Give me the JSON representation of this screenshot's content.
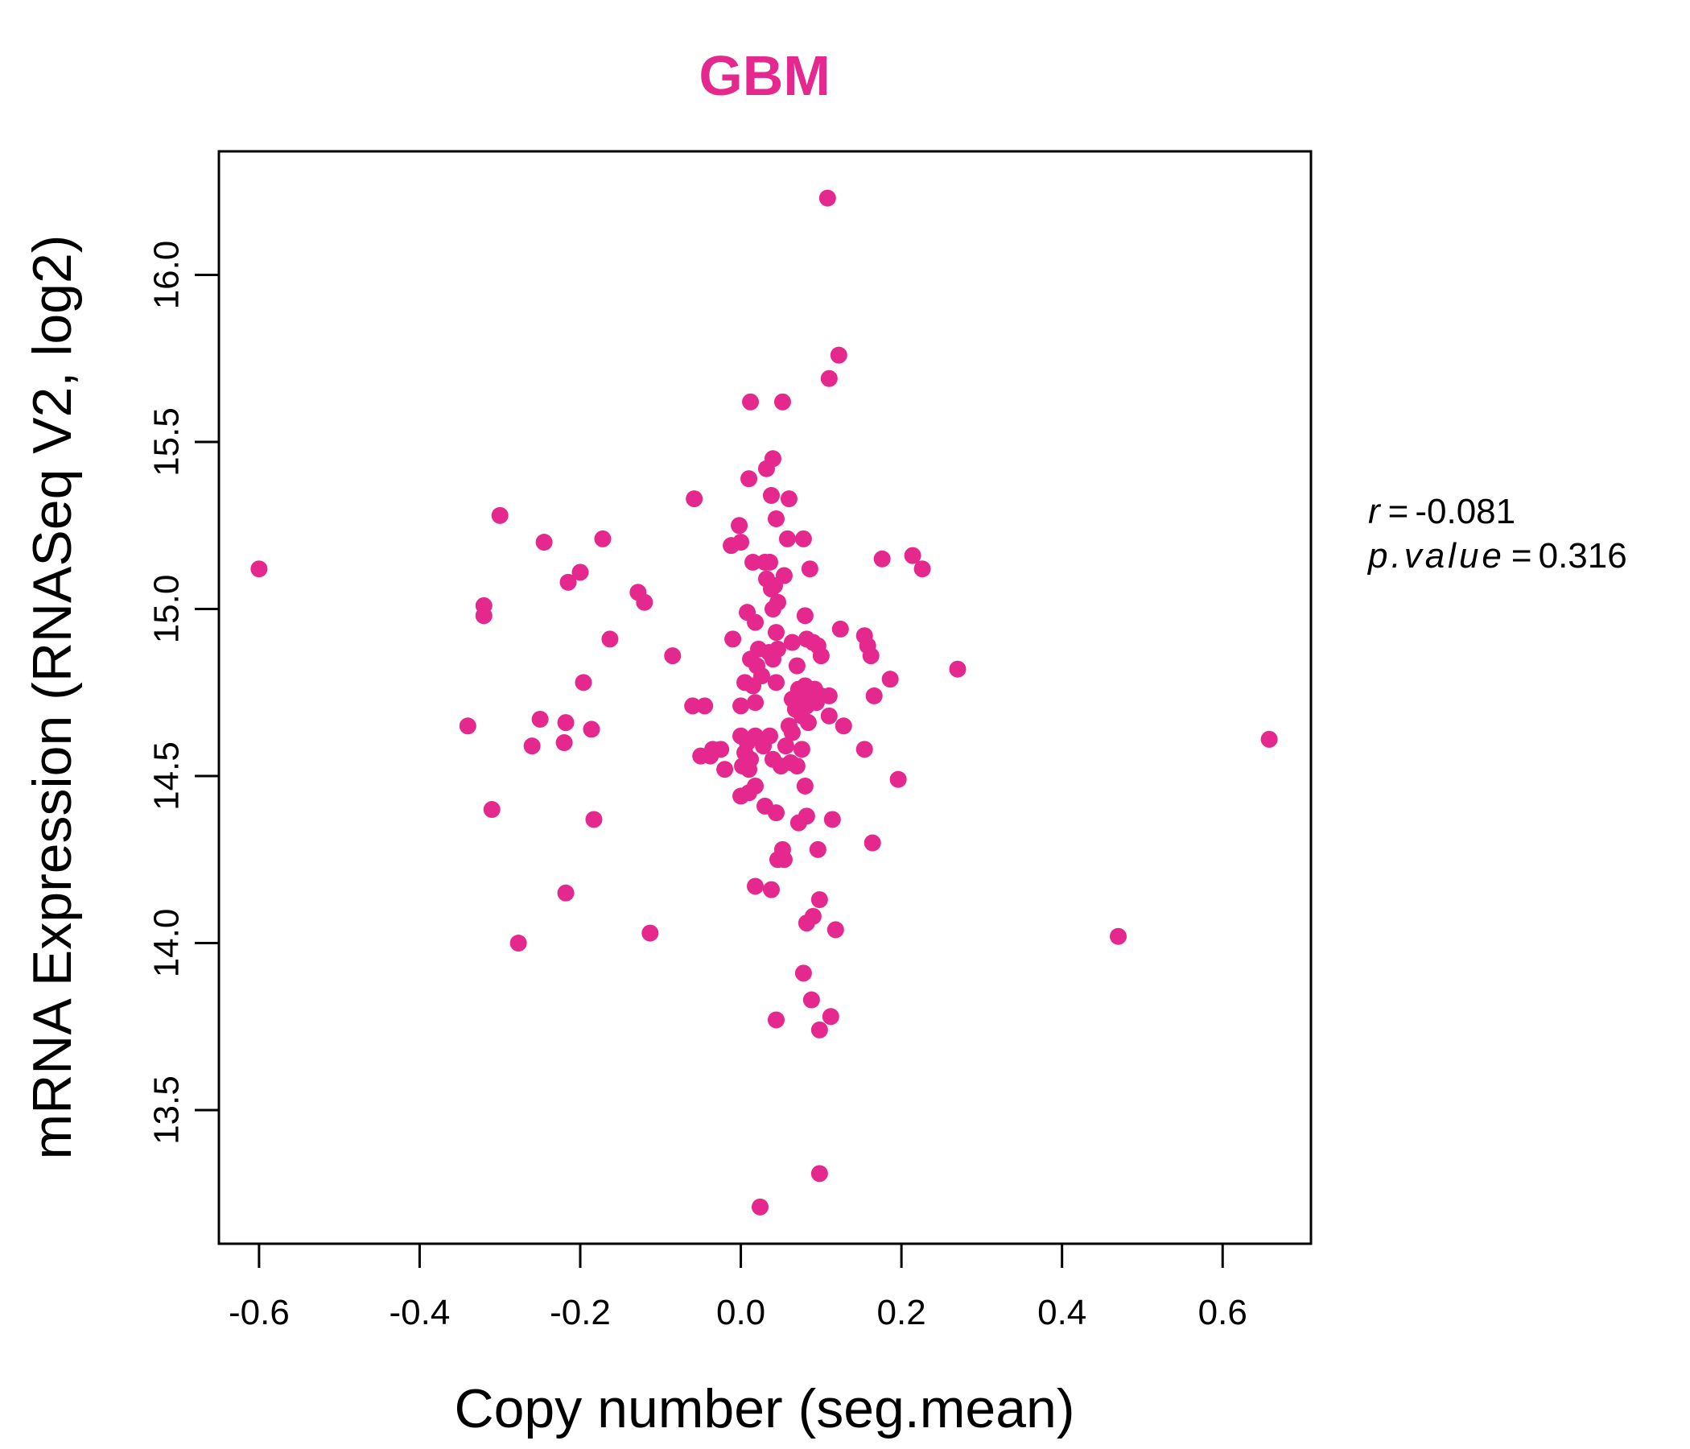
{
  "colors": {
    "point": "#e5288d",
    "title": "#e5288d",
    "axis": "#000000"
  },
  "stats": {
    "r_label": "r",
    "r_value": "-0.081",
    "p_label": "p.value",
    "p_value": "0.316"
  },
  "chart_data": {
    "type": "scatter",
    "title": "GBM",
    "xlabel": "Copy number (seg.mean)",
    "ylabel": "mRNA Expression (RNASeq V2, log2)",
    "xlim": [
      -0.65,
      0.71
    ],
    "ylim": [
      13.1,
      16.37
    ],
    "xticks": [
      -0.6,
      -0.4,
      -0.2,
      0.0,
      0.2,
      0.4,
      0.6
    ],
    "xtick_labels": [
      "-0.6",
      "-0.4",
      "-0.2",
      "0.0",
      "0.2",
      "0.4",
      "0.6"
    ],
    "yticks": [
      13.5,
      14.0,
      14.5,
      15.0,
      15.5,
      16.0
    ],
    "ytick_labels": [
      "13.5",
      "14.0",
      "14.5",
      "15.0",
      "15.5",
      "16.0"
    ],
    "grid": false,
    "points": [
      [
        -0.6,
        15.12
      ],
      [
        -0.3,
        15.28
      ],
      [
        -0.245,
        15.2
      ],
      [
        -0.2,
        15.11
      ],
      [
        -0.215,
        15.08
      ],
      [
        -0.172,
        15.21
      ],
      [
        -0.32,
        15.01
      ],
      [
        -0.32,
        14.98
      ],
      [
        -0.128,
        15.05
      ],
      [
        -0.12,
        15.02
      ],
      [
        -0.163,
        14.91
      ],
      [
        -0.085,
        14.86
      ],
      [
        -0.196,
        14.78
      ],
      [
        -0.34,
        14.65
      ],
      [
        -0.25,
        14.67
      ],
      [
        -0.218,
        14.66
      ],
      [
        -0.186,
        14.64
      ],
      [
        -0.26,
        14.59
      ],
      [
        -0.22,
        14.6
      ],
      [
        -0.31,
        14.4
      ],
      [
        -0.183,
        14.37
      ],
      [
        -0.218,
        14.15
      ],
      [
        -0.277,
        14.0
      ],
      [
        -0.113,
        14.03
      ],
      [
        -0.058,
        15.33
      ],
      [
        -0.002,
        15.25
      ],
      [
        -0.012,
        15.19
      ],
      [
        0.0,
        15.2
      ],
      [
        0.008,
        14.99
      ],
      [
        0.018,
        14.96
      ],
      [
        -0.01,
        14.91
      ],
      [
        0.022,
        14.88
      ],
      [
        0.012,
        14.85
      ],
      [
        0.02,
        14.83
      ],
      [
        0.005,
        14.78
      ],
      [
        0.015,
        14.77
      ],
      [
        0.0,
        14.71
      ],
      [
        0.018,
        14.72
      ],
      [
        -0.06,
        14.71
      ],
      [
        -0.045,
        14.71
      ],
      [
        0.0,
        14.62
      ],
      [
        0.008,
        14.6
      ],
      [
        0.018,
        14.62
      ],
      [
        -0.025,
        14.58
      ],
      [
        -0.035,
        14.58
      ],
      [
        0.005,
        14.57
      ],
      [
        0.012,
        14.55
      ],
      [
        -0.05,
        14.56
      ],
      [
        -0.038,
        14.56
      ],
      [
        -0.02,
        14.52
      ],
      [
        0.002,
        14.53
      ],
      [
        0.01,
        14.52
      ],
      [
        0.0,
        14.44
      ],
      [
        0.01,
        14.45
      ],
      [
        0.018,
        14.47
      ],
      [
        0.018,
        14.17
      ],
      [
        0.012,
        15.62
      ],
      [
        0.01,
        15.39
      ],
      [
        0.015,
        15.14
      ],
      [
        0.026,
        14.8
      ],
      [
        0.052,
        15.62
      ],
      [
        0.04,
        15.45
      ],
      [
        0.032,
        15.42
      ],
      [
        0.038,
        15.34
      ],
      [
        0.06,
        15.33
      ],
      [
        0.044,
        15.27
      ],
      [
        0.058,
        15.21
      ],
      [
        0.078,
        15.21
      ],
      [
        0.03,
        15.14
      ],
      [
        0.036,
        15.14
      ],
      [
        0.054,
        15.1
      ],
      [
        0.086,
        15.12
      ],
      [
        0.032,
        15.09
      ],
      [
        0.042,
        15.07
      ],
      [
        0.038,
        15.06
      ],
      [
        0.046,
        15.02
      ],
      [
        0.04,
        15.0
      ],
      [
        0.08,
        14.98
      ],
      [
        0.044,
        14.93
      ],
      [
        0.064,
        14.9
      ],
      [
        0.082,
        14.91
      ],
      [
        0.09,
        14.9
      ],
      [
        0.096,
        14.89
      ],
      [
        0.035,
        14.87
      ],
      [
        0.046,
        14.88
      ],
      [
        0.1,
        14.86
      ],
      [
        0.04,
        14.85
      ],
      [
        0.07,
        14.83
      ],
      [
        0.044,
        14.78
      ],
      [
        0.072,
        14.76
      ],
      [
        0.08,
        14.77
      ],
      [
        0.092,
        14.76
      ],
      [
        0.064,
        14.73
      ],
      [
        0.074,
        14.74
      ],
      [
        0.086,
        14.73
      ],
      [
        0.1,
        14.74
      ],
      [
        0.11,
        14.74
      ],
      [
        0.068,
        14.7
      ],
      [
        0.082,
        14.71
      ],
      [
        0.094,
        14.72
      ],
      [
        0.076,
        14.68
      ],
      [
        0.06,
        14.65
      ],
      [
        0.084,
        14.66
      ],
      [
        0.11,
        14.68
      ],
      [
        0.036,
        14.62
      ],
      [
        0.064,
        14.63
      ],
      [
        0.028,
        14.59
      ],
      [
        0.056,
        14.59
      ],
      [
        0.076,
        14.58
      ],
      [
        0.04,
        14.55
      ],
      [
        0.05,
        14.53
      ],
      [
        0.062,
        14.54
      ],
      [
        0.07,
        14.53
      ],
      [
        0.08,
        14.47
      ],
      [
        0.03,
        14.41
      ],
      [
        0.044,
        14.39
      ],
      [
        0.072,
        14.36
      ],
      [
        0.082,
        14.38
      ],
      [
        0.114,
        14.37
      ],
      [
        0.052,
        14.28
      ],
      [
        0.046,
        14.25
      ],
      [
        0.054,
        14.25
      ],
      [
        0.096,
        14.28
      ],
      [
        0.038,
        14.16
      ],
      [
        0.098,
        14.13
      ],
      [
        0.09,
        14.08
      ],
      [
        0.082,
        14.06
      ],
      [
        0.118,
        14.04
      ],
      [
        0.078,
        13.91
      ],
      [
        0.088,
        13.83
      ],
      [
        0.044,
        13.77
      ],
      [
        0.112,
        13.78
      ],
      [
        0.098,
        13.74
      ],
      [
        0.098,
        13.31
      ],
      [
        0.024,
        13.21
      ],
      [
        0.11,
        15.69
      ],
      [
        0.122,
        15.76
      ],
      [
        0.108,
        16.23
      ],
      [
        0.124,
        14.94
      ],
      [
        0.154,
        14.92
      ],
      [
        0.158,
        14.89
      ],
      [
        0.162,
        14.86
      ],
      [
        0.186,
        14.79
      ],
      [
        0.166,
        14.74
      ],
      [
        0.128,
        14.65
      ],
      [
        0.154,
        14.58
      ],
      [
        0.196,
        14.49
      ],
      [
        0.164,
        14.3
      ],
      [
        0.176,
        15.15
      ],
      [
        0.214,
        15.16
      ],
      [
        0.226,
        15.12
      ],
      [
        0.27,
        14.82
      ],
      [
        0.47,
        14.02
      ],
      [
        0.658,
        14.61
      ]
    ]
  }
}
